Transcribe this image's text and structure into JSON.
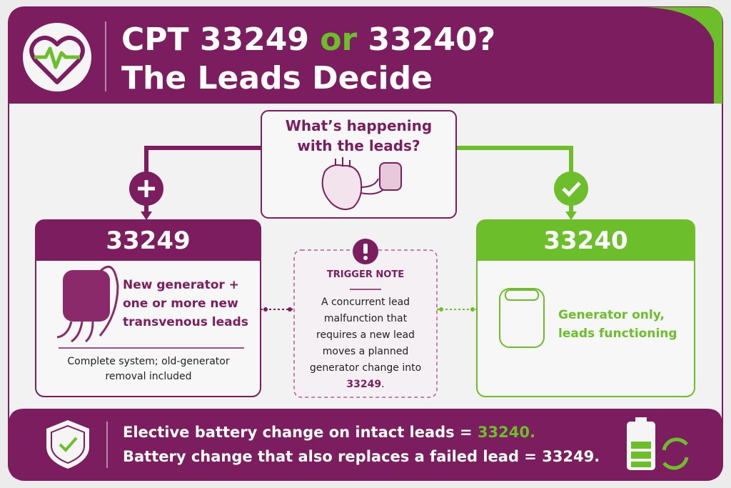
{
  "header": {
    "title_parts": [
      "CPT 33249",
      "or",
      "33240?"
    ],
    "subtitle": "The Leads Decide"
  },
  "question": "What’s happening with the leads?",
  "left_card": {
    "code": "33249",
    "description": "New generator + one or more new transvenous leads",
    "note": "Complete system; old-generator removal included"
  },
  "trigger_note": {
    "label": "TRIGGER NOTE",
    "text": "A concurrent lead malfunction that requires a new lead moves a planned generator change into",
    "highlight": "33249",
    "suffix": "."
  },
  "right_card": {
    "code": "33240",
    "description": "Generator only, leads functioning"
  },
  "footer": {
    "line1": "Elective battery change on intact leads =",
    "line1_highlight": "33240.",
    "line2": "Battery change that also replaces a failed lead = 33249."
  }
}
